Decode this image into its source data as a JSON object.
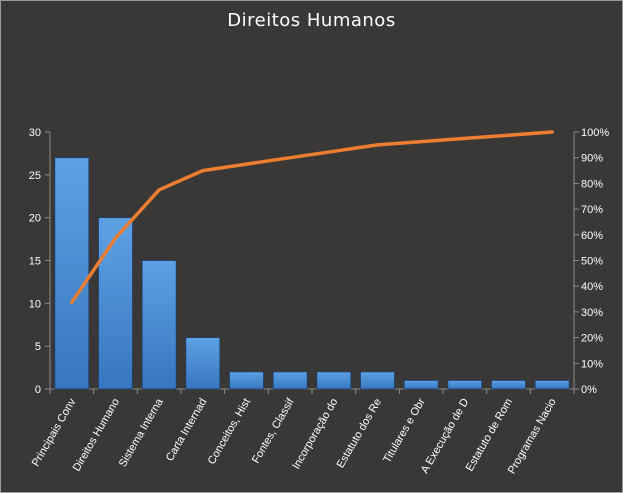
{
  "chart_data": {
    "type": "bar",
    "title": "Direitos Humanos",
    "categories": [
      "Principais Conv",
      "Direitos Humano",
      "Sistema Interna",
      "Carta Internad",
      "Conceitos, Hist",
      "Fontes, Classif",
      "Incorporação do",
      "Estatuto dos Re",
      "Titulares e Obr",
      "A Execução de D",
      "Estatuto de Rom",
      "Programas Nacio"
    ],
    "series": [
      {
        "type": "bar",
        "values": [
          27,
          20,
          15,
          6,
          2,
          2,
          2,
          2,
          1,
          1,
          1,
          1
        ]
      },
      {
        "type": "line",
        "axis": "secondary",
        "values": [
          33.75,
          58.75,
          77.5,
          85,
          87.5,
          90,
          92.5,
          95,
          96.25,
          97.5,
          98.75,
          100
        ]
      }
    ],
    "y_ticks": [
      "0",
      "5",
      "10",
      "15",
      "20",
      "25",
      "30"
    ],
    "y2_ticks": [
      "0%",
      "10%",
      "20%",
      "30%",
      "40%",
      "50%",
      "60%",
      "70%",
      "80%",
      "90%",
      "100%"
    ],
    "ylim": [
      0,
      30
    ],
    "y2lim": [
      0,
      100
    ],
    "grid": false,
    "legend": "none",
    "colors": {
      "background": "#3a3836",
      "bar_fill": "#4a8fd4",
      "bar_top": "#5da2e3",
      "bar_bottom": "#3876bf",
      "line": "#ed7d31",
      "axis": "#8c8c8c",
      "text": "#ffffff"
    }
  }
}
